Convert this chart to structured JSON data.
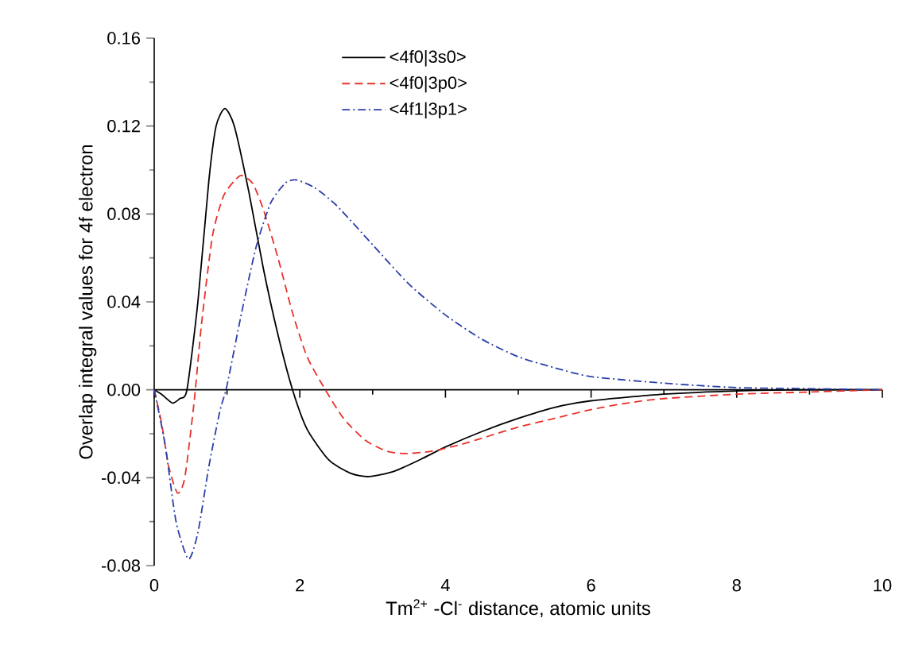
{
  "chart_data": {
    "type": "line",
    "xlabel": "Tm$^{2+}$ -Cl$^{-}$ distance, atomic units",
    "ylabel": "Overlap integral values for 4f electron",
    "xlim": [
      0,
      10
    ],
    "ylim": [
      -0.08,
      0.16
    ],
    "xticks": [
      0,
      {
        "value": 1,
        "label": null
      },
      2,
      {
        "value": 3,
        "label": null
      },
      4,
      {
        "value": 5,
        "label": null
      },
      6,
      {
        "value": 7,
        "label": null
      },
      8,
      {
        "value": 9,
        "label": null
      },
      10
    ],
    "yticks": [
      {
        "value": -0.08,
        "label": "-0.08"
      },
      {
        "value": -0.04,
        "label": "-0.04"
      },
      {
        "value": 0,
        "label": "0.00"
      },
      {
        "value": 0.04,
        "label": "0.04"
      },
      {
        "value": 0.08,
        "label": "0.08"
      },
      {
        "value": 0.12,
        "label": "0.12"
      },
      {
        "value": 0.16,
        "label": "0.16"
      }
    ],
    "legend": "top",
    "marker": "none",
    "series": [
      {
        "name": "<4f0|3s0>",
        "color": "#000000",
        "line_style": "solid",
        "x": [
          0,
          0.1,
          0.25,
          0.35,
          0.45,
          0.6,
          0.75,
          0.85,
          0.97,
          1.1,
          1.3,
          1.5,
          1.7,
          1.9,
          2.1,
          2.4,
          2.7,
          2.95,
          3.3,
          3.7,
          4,
          4.5,
          5,
          5.5,
          6,
          7,
          8,
          9,
          10
        ],
        "values": [
          0,
          -0.002,
          -0.006,
          -0.004,
          0,
          0.04,
          0.095,
          0.12,
          0.128,
          0.12,
          0.09,
          0.055,
          0.025,
          0,
          -0.018,
          -0.032,
          -0.038,
          -0.0395,
          -0.037,
          -0.031,
          -0.026,
          -0.019,
          -0.013,
          -0.008,
          -0.005,
          -0.002,
          -0.0005,
          0,
          0
        ]
      },
      {
        "name": "<4f0|3p0>",
        "color": "#e8302a",
        "line_style": "dashed",
        "x": [
          0,
          0.1,
          0.2,
          0.32,
          0.42,
          0.55,
          0.65,
          0.8,
          0.95,
          1.1,
          1.2,
          1.35,
          1.5,
          1.7,
          1.9,
          2.1,
          2.35,
          2.6,
          2.9,
          3.2,
          3.45,
          3.8,
          4.2,
          4.6,
          5,
          5.5,
          6,
          6.5,
          7,
          8,
          9,
          10
        ],
        "values": [
          0,
          -0.015,
          -0.035,
          -0.047,
          -0.04,
          -0.005,
          0.03,
          0.07,
          0.088,
          0.095,
          0.0975,
          0.094,
          0.082,
          0.06,
          0.035,
          0.015,
          0,
          -0.013,
          -0.023,
          -0.028,
          -0.029,
          -0.028,
          -0.025,
          -0.021,
          -0.017,
          -0.013,
          -0.009,
          -0.006,
          -0.004,
          -0.002,
          -0.001,
          0
        ]
      },
      {
        "name": "<4f1|3p1>",
        "color": "#2b3fa8",
        "line_style": "dashdot",
        "x": [
          0,
          0.15,
          0.3,
          0.47,
          0.6,
          0.75,
          0.9,
          1,
          1.2,
          1.4,
          1.6,
          1.8,
          1.95,
          2.2,
          2.5,
          3,
          3.5,
          4,
          4.5,
          5,
          5.5,
          6,
          7,
          8,
          9,
          10
        ],
        "values": [
          0,
          -0.025,
          -0.06,
          -0.077,
          -0.065,
          -0.035,
          -0.01,
          0.002,
          0.035,
          0.065,
          0.085,
          0.094,
          0.0955,
          0.092,
          0.084,
          0.066,
          0.048,
          0.034,
          0.023,
          0.015,
          0.01,
          0.006,
          0.003,
          0.001,
          0.0005,
          0
        ]
      }
    ]
  }
}
